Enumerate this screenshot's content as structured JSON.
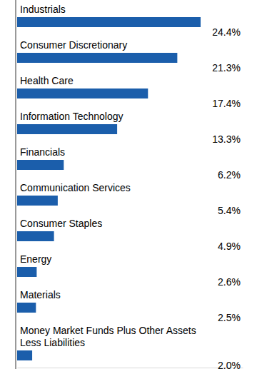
{
  "chart_data": {
    "type": "bar",
    "orientation": "horizontal",
    "categories": [
      "Industrials",
      "Consumer Discretionary",
      "Health Care",
      "Information Technology",
      "Financials",
      "Communication Services",
      "Consumer Staples",
      "Energy",
      "Materials",
      "Money Market Funds Plus Other Assets Less Liabilities"
    ],
    "values": [
      24.4,
      21.3,
      17.4,
      13.3,
      6.2,
      5.4,
      4.9,
      2.6,
      2.5,
      2.0
    ],
    "value_labels": [
      "24.4%",
      "21.3%",
      "17.4%",
      "13.3%",
      "6.2%",
      "5.4%",
      "4.9%",
      "2.6%",
      "2.5%",
      "2.0%"
    ],
    "data_labels": true,
    "color": "#1b5eab",
    "xlim": [
      0,
      30
    ],
    "tick_labels": false,
    "grid": false
  }
}
